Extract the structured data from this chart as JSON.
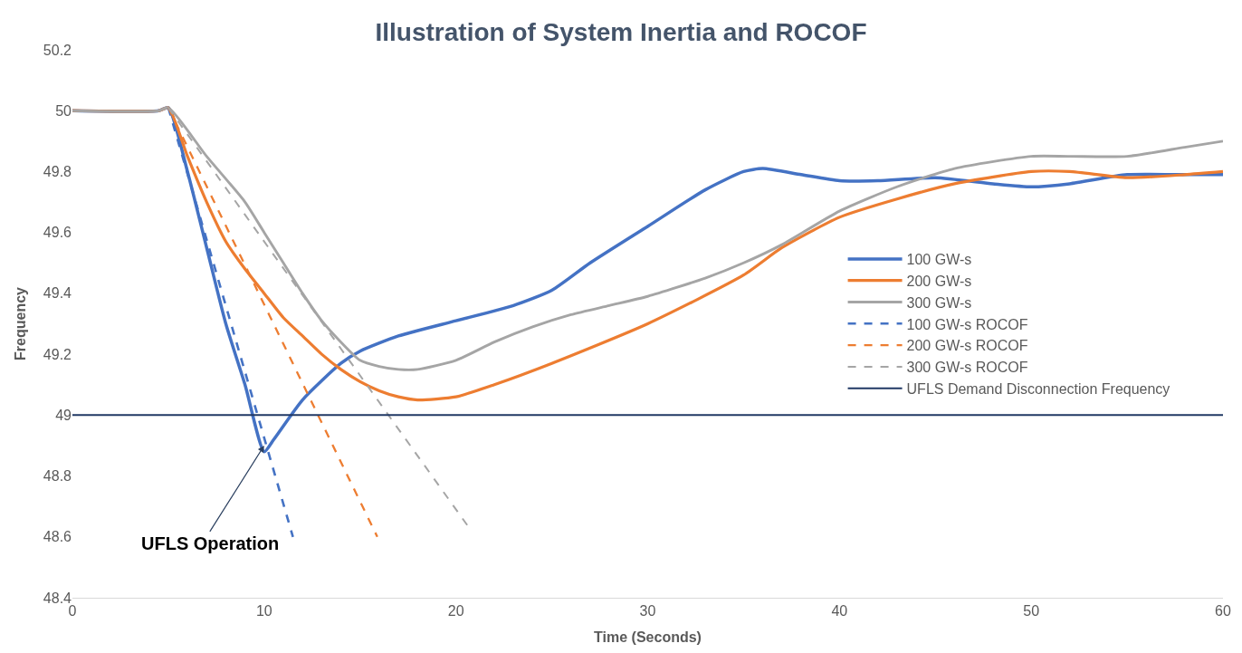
{
  "chart_data": {
    "type": "line",
    "title": "Illustration of System Inertia and ROCOF",
    "xlabel": "Time (Seconds)",
    "ylabel": "Frequency",
    "xlim": [
      0,
      60
    ],
    "xticks": [
      0,
      10,
      20,
      30,
      40,
      50,
      60
    ],
    "ylim": [
      48.4,
      50.2
    ],
    "yticks": [
      48.4,
      48.6,
      48.8,
      49,
      49.2,
      49.4,
      49.6,
      49.8,
      50,
      50.2
    ],
    "grid": false,
    "legend": "right",
    "marker": "none",
    "series": [
      {
        "name": "100 GW-s",
        "color": "#4472c4",
        "line_style": "solid",
        "x": [
          0,
          4.5,
          5,
          6,
          7,
          8,
          9,
          10,
          10.5,
          12,
          14,
          15,
          17,
          20,
          23,
          25,
          27,
          30,
          33,
          35,
          36,
          38,
          40,
          42,
          45,
          48,
          50,
          52,
          55,
          58,
          60
        ],
        "values": [
          50,
          50,
          50.01,
          49.8,
          49.55,
          49.3,
          49.1,
          48.88,
          48.92,
          49.05,
          49.17,
          49.21,
          49.26,
          49.31,
          49.36,
          49.41,
          49.5,
          49.62,
          49.74,
          49.8,
          49.81,
          49.79,
          49.77,
          49.77,
          49.78,
          49.76,
          49.75,
          49.76,
          49.79,
          49.79,
          49.79
        ]
      },
      {
        "name": "200 GW-s",
        "color": "#ed7d31",
        "line_style": "solid",
        "x": [
          0,
          4.5,
          5,
          6,
          7,
          8,
          9,
          10,
          11,
          12,
          13,
          14,
          15,
          16,
          17,
          18,
          20,
          22,
          25,
          30,
          35,
          37,
          40,
          43,
          46,
          50,
          52,
          55,
          58,
          60
        ],
        "values": [
          50,
          50,
          50.01,
          49.85,
          49.7,
          49.57,
          49.48,
          49.4,
          49.32,
          49.26,
          49.2,
          49.15,
          49.11,
          49.08,
          49.06,
          49.05,
          49.06,
          49.1,
          49.17,
          49.3,
          49.46,
          49.55,
          49.65,
          49.71,
          49.76,
          49.8,
          49.8,
          49.78,
          49.79,
          49.8
        ]
      },
      {
        "name": "300 GW-s",
        "color": "#a5a5a5",
        "line_style": "solid",
        "x": [
          0,
          4.5,
          5,
          7,
          9,
          10,
          11,
          12,
          13,
          14,
          15,
          16,
          17,
          18,
          20,
          22,
          24,
          26,
          28,
          30,
          33,
          35,
          37,
          40,
          43,
          46,
          50,
          52,
          55,
          58,
          60
        ],
        "values": [
          50,
          50,
          50.01,
          49.85,
          49.7,
          49.6,
          49.5,
          49.4,
          49.31,
          49.24,
          49.18,
          49.16,
          49.15,
          49.15,
          49.18,
          49.24,
          49.29,
          49.33,
          49.36,
          49.39,
          49.45,
          49.5,
          49.56,
          49.67,
          49.75,
          49.81,
          49.85,
          49.85,
          49.85,
          49.88,
          49.9
        ]
      },
      {
        "name": "100 GW-s ROCOF",
        "color": "#4472c4",
        "line_style": "dashed",
        "x": [
          5,
          11.5
        ],
        "values": [
          50.01,
          48.6
        ]
      },
      {
        "name": "200 GW-s ROCOF",
        "color": "#ed7d31",
        "line_style": "dashed",
        "x": [
          5,
          15.9
        ],
        "values": [
          50.01,
          48.6
        ]
      },
      {
        "name": "300 GW-s ROCOF",
        "color": "#a5a5a5",
        "line_style": "dashed",
        "x": [
          5,
          20.8
        ],
        "values": [
          50.01,
          48.62
        ]
      }
    ],
    "ref_lines": [
      {
        "axis": "y",
        "value": 49,
        "label": "UFLS Demand Disconnection Frequency",
        "color": "#203864",
        "line_style": "solid"
      }
    ],
    "annotations": [
      {
        "text": "UFLS Operation",
        "x": 10,
        "y": 48.9
      }
    ]
  }
}
